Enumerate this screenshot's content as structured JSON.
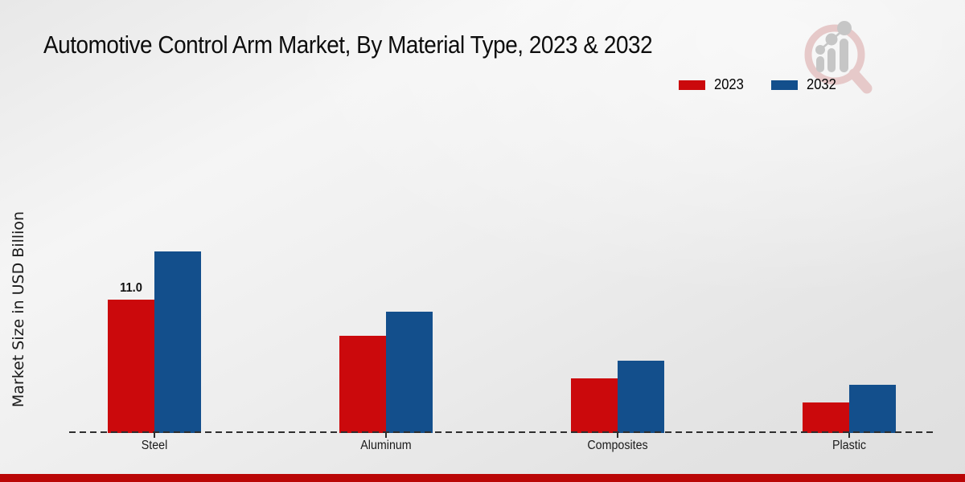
{
  "title": "Automotive Control Arm Market, By Material Type, 2023 & 2032",
  "y_axis_label": "Market Size in USD Billion",
  "legend": [
    {
      "label": "2023",
      "color": "#cb090c"
    },
    {
      "label": "2032",
      "color": "#134f8c"
    }
  ],
  "chart_data": {
    "type": "bar",
    "title": "Automotive Control Arm Market, By Material Type, 2023 & 2032",
    "xlabel": "",
    "ylabel": "Market Size in USD Billion",
    "categories": [
      "Steel",
      "Aluminum",
      "Composites",
      "Plastic"
    ],
    "series": [
      {
        "name": "2023",
        "color": "#cb090c",
        "values": [
          11.0,
          8.0,
          4.5,
          2.5
        ]
      },
      {
        "name": "2032",
        "color": "#134f8c",
        "values": [
          15.0,
          10.0,
          6.0,
          4.0
        ]
      }
    ],
    "annotations": [
      {
        "category": "Steel",
        "series": "2023",
        "text": "11.0"
      }
    ],
    "ylim": [
      0,
      16
    ],
    "grid": false,
    "legend_position": "top-right",
    "x_axis_style": "dashed"
  },
  "watermark_icon": "magnifier-bar-chart-logo",
  "colors": {
    "footer_bar": "#ba0606",
    "axis_dash": "#2e2e2e",
    "watermark_ring": "#e6c9c9",
    "watermark_bars": "#c6c6c6"
  }
}
